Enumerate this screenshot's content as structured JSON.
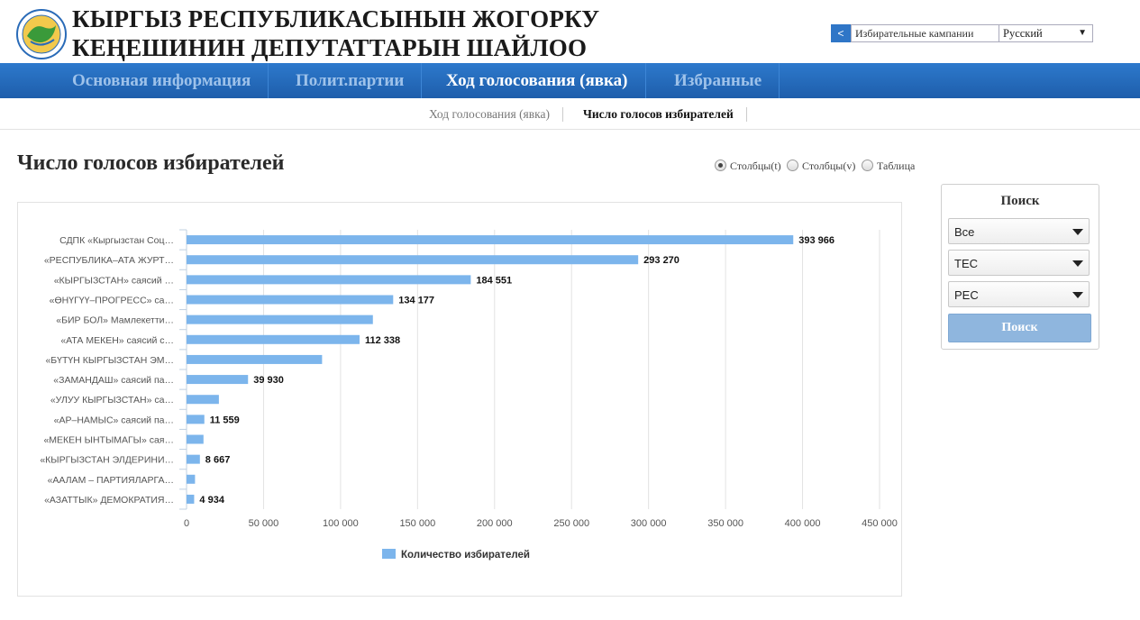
{
  "header": {
    "title": "КЫРГЫЗ РЕСПУБЛИКАСЫНЫН ЖОГОРКУ КЕҢЕШИНИН ДЕПУТАТТАРЫН ШАЙЛОО",
    "campaign_back": "<",
    "campaign_value": "Избирательные кампании",
    "language": "Русский"
  },
  "nav": {
    "items": [
      {
        "label": "Основная информация"
      },
      {
        "label": "Полит.партии"
      },
      {
        "label": "Ход голосования (явка)"
      },
      {
        "label": "Избранные"
      }
    ]
  },
  "subnav": {
    "items": [
      {
        "label": "Ход голосования (явка)"
      },
      {
        "label": "Число голосов избирателей"
      }
    ]
  },
  "page": {
    "title": "Число голосов избирателей",
    "view_options": [
      "Столбцы(t)",
      "Столбцы(v)",
      "Таблица"
    ]
  },
  "search": {
    "title": "Поиск",
    "selects": [
      "Все",
      "ТЕС",
      "РЕС"
    ],
    "button": "Поиск"
  },
  "chart_data": {
    "type": "bar",
    "orientation": "horizontal",
    "categories": [
      "СДПК «Кыргызстан Соц…",
      "«РЕСПУБЛИКА–АТА ЖУРТ…",
      "«КЫРГЫЗСТАН» саясий …",
      "«ӨНҮГҮҮ–ПРОГРЕСС» са…",
      "«БИР БОЛ» Мамлекетти…",
      "«АТА МЕКЕН» саясий с…",
      "«БҮТҮН КЫРГЫЗСТАН ЭМ…",
      "«ЗАМАНДАШ» саясий па…",
      "«УЛУУ КЫРГЫЗСТАН» са…",
      "«АР–НАМЫС» саясий па…",
      "«МЕКЕН ЫНТЫМАГЫ» сая…",
      "«КЫРГЫЗСТАН ЭЛДЕРИНИ…",
      "«ААЛАМ – ПАРТИЯЛАРГА…",
      "«АЗАТТЫК» ДЕМОКРАТИЯ…"
    ],
    "values": [
      393966,
      293270,
      184551,
      134177,
      121000,
      112338,
      88000,
      39930,
      21000,
      11559,
      11000,
      8667,
      5500,
      4934
    ],
    "labels": [
      "393 966",
      "293 270",
      "184 551",
      "134 177",
      "",
      "112 338",
      "",
      "39 930",
      "",
      "11 559",
      "",
      "8 667",
      "",
      "4 934"
    ],
    "series": [
      {
        "name": "Количество избирателей"
      }
    ],
    "xlim": [
      0,
      450000
    ],
    "xticks": [
      "0",
      "50 000",
      "100 000",
      "150 000",
      "200 000",
      "250 000",
      "300 000",
      "350 000",
      "400 000",
      "450 000"
    ],
    "grid": true,
    "legend_position": "bottom",
    "bar_color": "#7cb5ec"
  }
}
